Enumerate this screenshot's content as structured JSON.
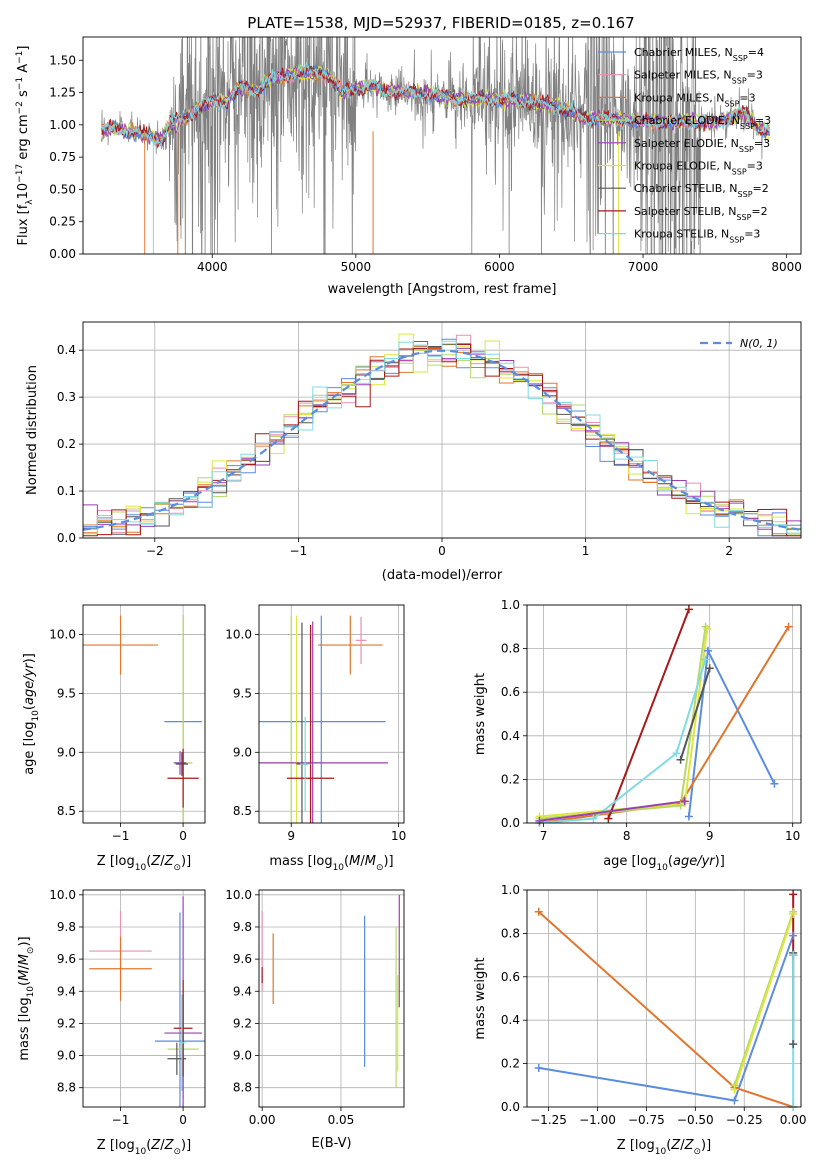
{
  "figure": {
    "title": "PLATE=1538, MJD=52937, FIBERID=0185, z=0.167"
  },
  "series_styles": [
    {
      "name": "Chabrier MILES, N_SSP=4",
      "color": "#5b8cdf"
    },
    {
      "name": "Salpeter MILES, N_SSP=3",
      "color": "#e88fb2"
    },
    {
      "name": "Kroupa MILES, N_SSP=3",
      "color": "#e0762d"
    },
    {
      "name": "Chabrier ELODIE, N_SSP=3",
      "color": "#b6d86a"
    },
    {
      "name": "Salpeter ELODIE, N_SSP=3",
      "color": "#9b3fb6"
    },
    {
      "name": "Kroupa ELODIE, N_SSP=3",
      "color": "#dce63c"
    },
    {
      "name": "Chabrier STELIB, N_SSP=2",
      "color": "#555555"
    },
    {
      "name": "Salpeter STELIB, N_SSP=2",
      "color": "#a61919"
    },
    {
      "name": "Kroupa STELIB, N_SSP=3",
      "color": "#7fdbe3"
    }
  ],
  "legend_text": {
    "spectrum": [
      {
        "main": "Chabrier MILES, N",
        "sub": "SSP",
        "tail": "=4"
      },
      {
        "main": "Salpeter MILES, N",
        "sub": "SSP",
        "tail": "=3"
      },
      {
        "main": "Kroupa MILES, N",
        "sub": "SSP",
        "tail": "=3"
      },
      {
        "main": "Chabrier ELODIE, N",
        "sub": "SSP",
        "tail": "=3"
      },
      {
        "main": "Salpeter ELODIE, N",
        "sub": "SSP",
        "tail": "=3"
      },
      {
        "main": "Kroupa ELODIE, N",
        "sub": "SSP",
        "tail": "=3"
      },
      {
        "main": "Chabrier STELIB, N",
        "sub": "SSP",
        "tail": "=2"
      },
      {
        "main": "Salpeter STELIB, N",
        "sub": "SSP",
        "tail": "=2"
      },
      {
        "main": "Kroupa STELIB, N",
        "sub": "SSP",
        "tail": "=3"
      }
    ],
    "normal": "N(0, 1)"
  },
  "chart_data": [
    {
      "id": "spectrum",
      "type": "line",
      "title": "PLATE=1538, MJD=52937, FIBERID=0185, z=0.167",
      "xlabel": "wavelength [Angstrom, rest frame]",
      "ylabel": "Flux [f_λ 10^-17 erg cm^-2 s^-1 A^-1]",
      "xlim": [
        3100,
        8100
      ],
      "ylim": [
        0,
        1.68
      ],
      "xticks": [
        "4000",
        "5000",
        "6000",
        "7000",
        "8000"
      ],
      "yticks": [
        "0.00",
        "0.25",
        "0.50",
        "0.75",
        "1.00",
        "1.25",
        "1.50"
      ],
      "legend": "top-right",
      "continuum": {
        "x": [
          3230,
          3300,
          3400,
          3500,
          3600,
          3650,
          3700,
          3800,
          3900,
          4000,
          4100,
          4200,
          4300,
          4400,
          4500,
          4600,
          4700,
          4800,
          4900,
          5000,
          5100,
          5200,
          5300,
          5400,
          5500,
          5600,
          5700,
          5800,
          5900,
          6000,
          6100,
          6200,
          6300,
          6400,
          6500,
          6600,
          6700,
          6800,
          6900,
          7000,
          7100,
          7200,
          7300,
          7400,
          7500,
          7600,
          7700,
          7800,
          7880
        ],
        "y": [
          0.95,
          0.98,
          0.95,
          0.93,
          0.9,
          0.88,
          1.0,
          1.05,
          1.13,
          1.18,
          1.18,
          1.3,
          1.26,
          1.35,
          1.38,
          1.4,
          1.4,
          1.4,
          1.25,
          1.28,
          1.3,
          1.27,
          1.25,
          1.25,
          1.24,
          1.22,
          1.2,
          1.2,
          1.2,
          1.2,
          1.19,
          1.18,
          1.16,
          1.15,
          1.1,
          1.05,
          1.05,
          1.04,
          1.03,
          1.03,
          1.02,
          1.02,
          1.02,
          1.02,
          1.01,
          1.05,
          1.1,
          0.97,
          0.95
        ]
      },
      "observed_data_color": "#808080"
    },
    {
      "id": "residuals",
      "type": "histogram",
      "xlabel": "(data-model)/error",
      "ylabel": "Normed distribution",
      "xlim": [
        -2.5,
        2.5
      ],
      "ylim": [
        0,
        0.46
      ],
      "xticks": [
        "−2",
        "−1",
        "0",
        "1",
        "2"
      ],
      "yticks": [
        "0.0",
        "0.1",
        "0.2",
        "0.3",
        "0.4"
      ],
      "bin_width": 0.1,
      "reference": {
        "name": "N(0, 1)",
        "mean": 0,
        "sigma": 1,
        "style": "dashed",
        "color": "#5b8cdf"
      },
      "legend": "top-right"
    },
    {
      "id": "age_vs_Z",
      "type": "scatter",
      "xlabel": "Z [log10(Z/Z⊙)]",
      "ylabel": "age [log10(age/yr)]",
      "xlim": [
        -1.6,
        0.35
      ],
      "ylim": [
        8.4,
        10.25
      ],
      "xticks": [
        "−1",
        "0"
      ],
      "yticks": [
        "8.5",
        "9.0",
        "9.5",
        "10.0"
      ],
      "points": [
        {
          "series": 2,
          "x": -1.0,
          "y": 9.91,
          "xerr": 0.6,
          "yerr": 0.25
        },
        {
          "series": 0,
          "x": 0.0,
          "y": 9.26,
          "xerr": 0.3,
          "yerr": 0.9
        },
        {
          "series": 3,
          "x": 0.0,
          "y": 8.91,
          "xerr": 0.15,
          "yerr": 1.25
        },
        {
          "series": 4,
          "x": -0.05,
          "y": 8.91,
          "xerr": 0.1,
          "yerr": 0.1
        },
        {
          "series": 6,
          "x": -0.02,
          "y": 8.9,
          "xerr": 0.1,
          "yerr": 0.1
        },
        {
          "series": 7,
          "x": 0.0,
          "y": 8.78,
          "xerr": 0.25,
          "yerr": 0.25
        }
      ]
    },
    {
      "id": "age_vs_mass",
      "type": "scatter",
      "xlabel": "mass [log10(M/M⊙)]",
      "ylabel": "",
      "xlim": [
        8.7,
        10.05
      ],
      "ylim": [
        8.4,
        10.25
      ],
      "xticks": [
        "9",
        "10"
      ],
      "yticks": [
        "8.5",
        "9.0",
        "9.5",
        "10.0"
      ],
      "points": [
        {
          "series": 2,
          "x": 9.55,
          "y": 9.91,
          "xerr": 0.3,
          "yerr": 0.25
        },
        {
          "series": 1,
          "x": 9.65,
          "y": 9.95,
          "xerr": 0.05,
          "yerr": 0.2
        },
        {
          "series": 0,
          "x": 9.28,
          "y": 9.26,
          "xerr": 0.6,
          "yerr": 0.9
        },
        {
          "series": 3,
          "x": 9.0,
          "y": 8.91,
          "xerr": 0.3,
          "yerr": 1.25
        },
        {
          "series": 5,
          "x": 9.05,
          "y": 8.91,
          "xerr": 0.05,
          "yerr": 1.25
        },
        {
          "series": 4,
          "x": 9.2,
          "y": 8.91,
          "xerr": 0.7,
          "yerr": 1.2
        },
        {
          "series": 6,
          "x": 9.1,
          "y": 8.9,
          "xerr": 0.05,
          "yerr": 1.2
        },
        {
          "series": 7,
          "x": 9.18,
          "y": 8.78,
          "xerr": 0.22,
          "yerr": 1.3
        },
        {
          "series": 8,
          "x": 9.13,
          "y": 8.9,
          "xerr": 0.05,
          "yerr": 0.4
        }
      ]
    },
    {
      "id": "massweight_vs_age",
      "type": "line",
      "xlabel": "age [log10(age/yr)]",
      "ylabel": "mass weight",
      "xlim": [
        6.8,
        10.1
      ],
      "ylim": [
        0,
        1.0
      ],
      "xticks": [
        "7",
        "8",
        "9",
        "10"
      ],
      "yticks": [
        "0.0",
        "0.2",
        "0.4",
        "0.6",
        "0.8",
        "1.0"
      ],
      "series": [
        {
          "series": 0,
          "x": [
            8.75,
            8.98,
            9.78
          ],
          "y": [
            0.03,
            0.79,
            0.18
          ]
        },
        {
          "series": 2,
          "x": 6.95,
          "xs": [
            6.95,
            8.65,
            9.95
          ],
          "y": [
            0.0,
            0.09,
            0.9
          ]
        },
        {
          "series": 3,
          "x": [
            6.95,
            8.65,
            8.95
          ],
          "y": [
            0.02,
            0.08,
            0.9
          ]
        },
        {
          "series": 5,
          "x": [
            6.95,
            8.7,
            8.97
          ],
          "y": [
            0.03,
            0.09,
            0.89
          ]
        },
        {
          "series": 6,
          "x": [
            8.65,
            9.0
          ],
          "y": [
            0.29,
            0.71
          ]
        },
        {
          "series": 7,
          "x": [
            7.78,
            8.75
          ],
          "y": [
            0.02,
            0.98
          ]
        },
        {
          "series": 8,
          "x": [
            6.95,
            7.6,
            8.6,
            8.95
          ],
          "y": [
            0.0,
            0.02,
            0.32,
            0.75
          ]
        },
        {
          "series": 4,
          "x": [
            6.95,
            8.7
          ],
          "y": [
            0.01,
            0.1
          ]
        }
      ]
    },
    {
      "id": "mass_vs_Z",
      "type": "scatter",
      "xlabel": "Z [log10(Z/Z⊙)]",
      "ylabel": "mass [log10(M/M⊙)]",
      "xlim": [
        -1.6,
        0.35
      ],
      "ylim": [
        8.68,
        10.03
      ],
      "xticks": [
        "−1",
        "0"
      ],
      "yticks": [
        "8.8",
        "9.0",
        "9.2",
        "9.4",
        "9.6",
        "9.8",
        "10.0"
      ],
      "points": [
        {
          "series": 1,
          "x": -1.0,
          "y": 9.65,
          "xerr": 0.5,
          "yerr": 0.25
        },
        {
          "series": 2,
          "x": -1.0,
          "y": 9.54,
          "xerr": 0.5,
          "yerr": 0.2
        },
        {
          "series": 0,
          "x": -0.05,
          "y": 9.09,
          "xerr": 0.4,
          "yerr": 0.8
        },
        {
          "series": 3,
          "x": 0.0,
          "y": 9.04,
          "xerr": 0.25,
          "yerr": 0.3
        },
        {
          "series": 4,
          "x": 0.0,
          "y": 9.14,
          "xerr": 0.3,
          "yerr": 0.85
        },
        {
          "series": 6,
          "x": -0.1,
          "y": 8.98,
          "xerr": 0.15,
          "yerr": 0.1
        },
        {
          "series": 7,
          "x": 0.0,
          "y": 9.17,
          "xerr": 0.15,
          "yerr": 0.3
        },
        {
          "series": 8,
          "x": -0.02,
          "y": 9.08,
          "xerr": 0.05,
          "yerr": 0.3
        }
      ]
    },
    {
      "id": "mass_vs_EBV",
      "type": "scatter",
      "xlabel": "E(B-V)",
      "ylabel": "",
      "xlim": [
        -0.002,
        0.09
      ],
      "ylim": [
        8.68,
        10.03
      ],
      "xticks": [
        "0.00",
        "0.05"
      ],
      "yticks": [
        "8.8",
        "9.0",
        "9.2",
        "9.4",
        "9.6",
        "9.8",
        "10.0"
      ],
      "points": [
        {
          "series": 1,
          "x": 0.0,
          "y": 9.65,
          "xerr": 0.0005,
          "yerr": 0.25
        },
        {
          "series": 2,
          "x": 0.007,
          "y": 9.54,
          "xerr": 0.0005,
          "yerr": 0.22
        },
        {
          "series": 7,
          "x": 0.0,
          "y": 9.5,
          "xerr": 0.0005,
          "yerr": 0.05
        },
        {
          "series": 0,
          "x": 0.065,
          "y": 9.4,
          "xerr": 0.0005,
          "yerr": 0.47
        },
        {
          "series": 3,
          "x": 0.085,
          "y": 9.3,
          "xerr": 0.0005,
          "yerr": 0.5
        },
        {
          "series": 4,
          "x": 0.087,
          "y": 9.65,
          "xerr": 0.0005,
          "yerr": 0.35
        },
        {
          "series": 5,
          "x": 0.086,
          "y": 9.2,
          "xerr": 0.0005,
          "yerr": 0.3
        }
      ]
    },
    {
      "id": "massweight_vs_Z",
      "type": "line",
      "xlabel": "Z [log10(Z/Z⊙)]",
      "ylabel": "mass weight",
      "xlim": [
        -1.36,
        0.04
      ],
      "ylim": [
        0,
        1.0
      ],
      "xticks": [
        "−1.25",
        "−1.00",
        "−0.75",
        "−0.50",
        "−0.25",
        "0.00"
      ],
      "yticks": [
        "0.0",
        "0.2",
        "0.4",
        "0.6",
        "0.8",
        "1.0"
      ],
      "series": [
        {
          "series": 0,
          "x": [
            -1.3,
            -0.3,
            0.0
          ],
          "y": [
            0.18,
            0.03,
            0.79
          ]
        },
        {
          "series": 2,
          "x": [
            -1.3,
            -0.3,
            0.0
          ],
          "y": [
            0.9,
            0.09,
            0.0
          ]
        },
        {
          "series": 3,
          "x": [
            -0.3,
            0.0
          ],
          "y": [
            0.1,
            0.9
          ]
        },
        {
          "series": 5,
          "x": [
            -0.3,
            0.0
          ],
          "y": [
            0.08,
            0.89
          ]
        },
        {
          "series": 7,
          "x": [
            0.0,
            0.0
          ],
          "y": [
            0.7,
            0.98
          ]
        },
        {
          "series": 6,
          "x": [
            0.0,
            0.0
          ],
          "y": [
            0.29,
            0.71
          ]
        },
        {
          "series": 8,
          "x": [
            0.0,
            0.0
          ],
          "y": [
            0.0,
            0.7
          ]
        }
      ]
    }
  ]
}
